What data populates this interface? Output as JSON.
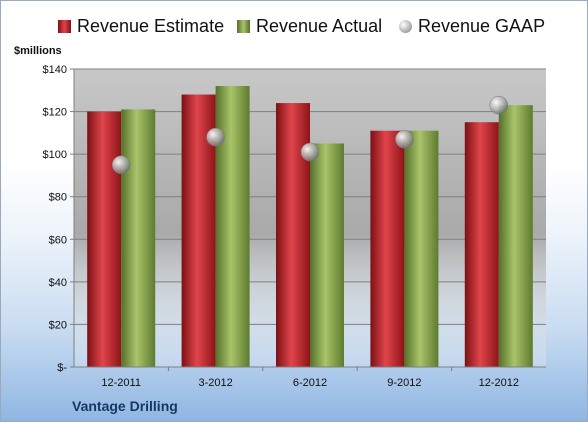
{
  "chart_data": {
    "type": "bar",
    "ylabel": "$millions",
    "categories": [
      "12-2011",
      "3-2012",
      "6-2012",
      "9-2012",
      "12-2012"
    ],
    "series": [
      {
        "name": "Revenue Estimate",
        "values": [
          120,
          128,
          124,
          111,
          115
        ],
        "color": "#c0272d"
      },
      {
        "name": "Revenue Actual",
        "values": [
          121,
          132,
          105,
          111,
          123
        ],
        "color": "#8aa64a"
      },
      {
        "name": "Revenue GAAP",
        "values": [
          95,
          108,
          101,
          107,
          123
        ],
        "color": "#a6a6a6",
        "marker": "sphere"
      }
    ],
    "ylim": [
      0,
      140
    ],
    "yticks": [
      0,
      20,
      40,
      60,
      80,
      100,
      120,
      140
    ],
    "ytick_labels": [
      "$-",
      "$20",
      "$40",
      "$60",
      "$80",
      "$100",
      "$120",
      "$140"
    ],
    "grid": true,
    "legend": "top"
  },
  "company": "Vantage Drilling"
}
